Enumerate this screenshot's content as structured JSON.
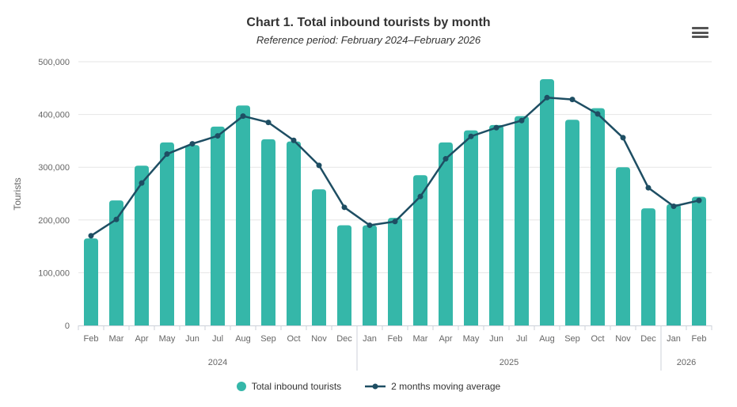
{
  "header": {
    "title": "Chart 1. Total inbound tourists by month",
    "subtitle": "Reference period: February 2024–February 2026"
  },
  "y_axis": {
    "title": "Tourists",
    "tick_labels": [
      "0",
      "100,000",
      "200,000",
      "300,000",
      "400,000",
      "500,000"
    ],
    "tick_values": [
      0,
      100000,
      200000,
      300000,
      400000,
      500000
    ]
  },
  "x_axis": {
    "month_labels": [
      "Feb",
      "Mar",
      "Apr",
      "May",
      "Jun",
      "Jul",
      "Aug",
      "Sep",
      "Oct",
      "Nov",
      "Dec",
      "Jan",
      "Feb",
      "Mar",
      "Apr",
      "May",
      "Jun",
      "Jul",
      "Aug",
      "Sep",
      "Oct",
      "Nov",
      "Dec",
      "Jan",
      "Feb"
    ],
    "year_labels": [
      "2024",
      "2025",
      "2026"
    ]
  },
  "legend": {
    "items": [
      {
        "label": "Total inbound tourists",
        "series": "bars"
      },
      {
        "label": "2 months moving average",
        "series": "line"
      }
    ]
  },
  "colors": {
    "bar": "#35b7a9",
    "line": "#1e4e63",
    "grid": "#e6e6e6",
    "axis": "#ccd1d9",
    "title_text": "#333333",
    "label_text": "#666666",
    "menu_icon": "#555555"
  },
  "chart_data": {
    "type": "bar",
    "title": "Chart 1. Total inbound tourists by month",
    "subtitle": "Reference period: February 2024–February 2026",
    "xlabel": "",
    "ylabel": "Tourists",
    "ylim": [
      0,
      500000
    ],
    "grid": true,
    "legend_position": "bottom",
    "categories": [
      "Feb 2024",
      "Mar 2024",
      "Apr 2024",
      "May 2024",
      "Jun 2024",
      "Jul 2024",
      "Aug 2024",
      "Sep 2024",
      "Oct 2024",
      "Nov 2024",
      "Dec 2024",
      "Jan 2025",
      "Feb 2025",
      "Mar 2025",
      "Apr 2025",
      "May 2025",
      "Jun 2025",
      "Jul 2025",
      "Aug 2025",
      "Sep 2025",
      "Oct 2025",
      "Nov 2025",
      "Dec 2025",
      "Jan 2026",
      "Feb 2026"
    ],
    "series": [
      {
        "name": "Total inbound tourists",
        "type": "bar",
        "values": [
          165000,
          237000,
          303000,
          347000,
          342000,
          377000,
          417000,
          353000,
          349000,
          258000,
          190000,
          190000,
          204000,
          285000,
          347000,
          370000,
          380000,
          397000,
          467000,
          390000,
          412000,
          300000,
          222000,
          230000,
          244000
        ]
      },
      {
        "name": "2 months moving average",
        "type": "line",
        "values": [
          170000,
          201000,
          270000,
          325000,
          344500,
          359500,
          397000,
          385000,
          351000,
          303500,
          224000,
          190000,
          197000,
          244500,
          316000,
          358500,
          375000,
          388500,
          432000,
          428500,
          401000,
          356000,
          261000,
          226000,
          237000
        ]
      }
    ],
    "year_groups": [
      {
        "label": "2024",
        "start_index": 0,
        "end_index": 10
      },
      {
        "label": "2025",
        "start_index": 11,
        "end_index": 22
      },
      {
        "label": "2026",
        "start_index": 23,
        "end_index": 24
      }
    ]
  }
}
